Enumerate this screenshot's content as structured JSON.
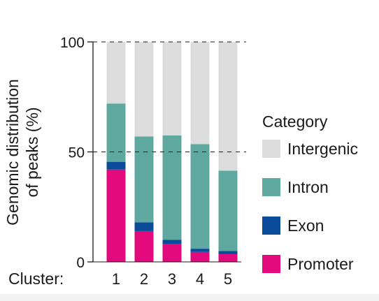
{
  "chart_data": {
    "type": "bar",
    "stacked": true,
    "ylabel": "Genomic distribution of peaks (%)",
    "ylabel_lines": [
      "Genomic distribution",
      "of peaks (%)"
    ],
    "x_title": "Cluster:",
    "categories": [
      "1",
      "2",
      "3",
      "4",
      "5"
    ],
    "ylim": [
      0,
      100
    ],
    "yticks": [
      0,
      50,
      100
    ],
    "legend_title": "Category",
    "legend_position": "right",
    "series": [
      {
        "name": "Promoter",
        "color": "#e4097c",
        "values": [
          42,
          14,
          8,
          4.5,
          3.5
        ]
      },
      {
        "name": "Exon",
        "color": "#0a4c9a",
        "values": [
          3.5,
          4,
          2,
          1.5,
          1.5
        ]
      },
      {
        "name": "Intron",
        "color": "#5fa8a0",
        "values": [
          26.5,
          39,
          47.5,
          47.5,
          36.5
        ]
      },
      {
        "name": "Intergenic",
        "color": "#dcdcdc",
        "values": [
          28,
          43,
          42.5,
          46.5,
          58.5
        ]
      }
    ],
    "legend_order": [
      "Intergenic",
      "Intron",
      "Exon",
      "Promoter"
    ]
  }
}
